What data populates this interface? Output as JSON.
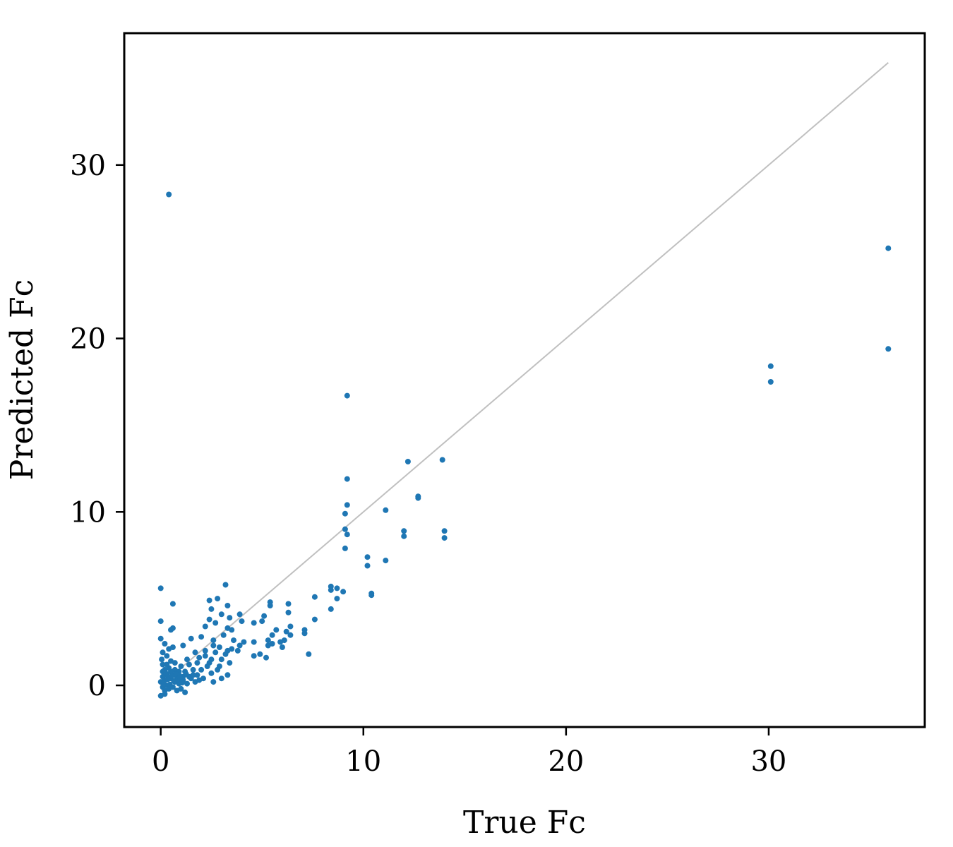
{
  "chart_data": {
    "type": "scatter",
    "title": "",
    "xlabel": "True Fc",
    "ylabel": "Predicted Fc",
    "xlim": [
      -1.8,
      37.7
    ],
    "ylim": [
      -2.4,
      37.6
    ],
    "xticks": [
      0,
      10,
      20,
      30
    ],
    "yticks": [
      0,
      10,
      20,
      30
    ],
    "xtick_labels": [
      "0",
      "10",
      "20",
      "30"
    ],
    "ytick_labels": [
      "0",
      "10",
      "20",
      "30"
    ],
    "grid": false,
    "legend": "none",
    "marker_color": "#1f77b4",
    "identity_line": {
      "from": [
        0,
        0
      ],
      "to": [
        35.9,
        35.9
      ],
      "color": "#c0c0c0"
    },
    "points": [
      [
        0.4,
        28.3
      ],
      [
        35.9,
        25.2
      ],
      [
        35.9,
        19.4
      ],
      [
        30.1,
        18.4
      ],
      [
        30.1,
        17.5
      ],
      [
        9.2,
        16.7
      ],
      [
        12.2,
        12.9
      ],
      [
        13.9,
        13.0
      ],
      [
        9.2,
        11.9
      ],
      [
        12.7,
        10.9
      ],
      [
        12.7,
        10.8
      ],
      [
        9.2,
        10.4
      ],
      [
        9.1,
        9.9
      ],
      [
        11.1,
        10.1
      ],
      [
        9.1,
        9.0
      ],
      [
        9.2,
        8.7
      ],
      [
        12.0,
        8.9
      ],
      [
        12.0,
        8.6
      ],
      [
        14.0,
        8.9
      ],
      [
        14.0,
        8.5
      ],
      [
        9.1,
        7.9
      ],
      [
        10.2,
        7.4
      ],
      [
        10.2,
        6.9
      ],
      [
        11.1,
        7.2
      ],
      [
        8.4,
        5.7
      ],
      [
        8.7,
        5.6
      ],
      [
        8.4,
        5.5
      ],
      [
        9.0,
        5.4
      ],
      [
        10.4,
        5.3
      ],
      [
        10.4,
        5.2
      ],
      [
        8.7,
        5.0
      ],
      [
        7.6,
        5.1
      ],
      [
        8.4,
        4.4
      ],
      [
        7.6,
        3.8
      ],
      [
        7.1,
        3.0
      ],
      [
        7.1,
        3.2
      ],
      [
        7.3,
        1.8
      ],
      [
        6.3,
        4.7
      ],
      [
        6.3,
        4.2
      ],
      [
        6.4,
        3.4
      ],
      [
        6.2,
        3.1
      ],
      [
        6.4,
        2.9
      ],
      [
        6.1,
        2.6
      ],
      [
        6.0,
        2.2
      ],
      [
        5.9,
        2.5
      ],
      [
        5.7,
        3.2
      ],
      [
        5.4,
        4.8
      ],
      [
        5.4,
        4.6
      ],
      [
        5.1,
        4.0
      ],
      [
        5.0,
        3.7
      ],
      [
        4.6,
        3.6
      ],
      [
        5.5,
        2.9
      ],
      [
        5.3,
        2.6
      ],
      [
        5.5,
        2.4
      ],
      [
        5.3,
        2.3
      ],
      [
        4.6,
        2.5
      ],
      [
        4.9,
        1.8
      ],
      [
        4.6,
        1.7
      ],
      [
        5.2,
        1.6
      ],
      [
        0.0,
        5.6
      ],
      [
        0.6,
        4.7
      ],
      [
        2.4,
        4.9
      ],
      [
        2.8,
        5.0
      ],
      [
        3.2,
        5.8
      ],
      [
        3.3,
        4.6
      ],
      [
        2.5,
        4.4
      ],
      [
        3.0,
        4.1
      ],
      [
        3.4,
        3.9
      ],
      [
        3.9,
        4.1
      ],
      [
        4.0,
        3.7
      ],
      [
        3.9,
        2.3
      ],
      [
        3.8,
        2.0
      ],
      [
        4.1,
        2.5
      ],
      [
        0.0,
        3.7
      ],
      [
        0.5,
        3.2
      ],
      [
        0.6,
        3.3
      ],
      [
        1.5,
        2.7
      ],
      [
        2.2,
        3.4
      ],
      [
        2.4,
        3.8
      ],
      [
        2.7,
        3.6
      ],
      [
        3.3,
        3.3
      ],
      [
        3.5,
        3.2
      ],
      [
        2.0,
        2.8
      ],
      [
        2.6,
        2.6
      ],
      [
        3.1,
        2.9
      ],
      [
        3.6,
        2.6
      ],
      [
        3.3,
        2.0
      ],
      [
        3.0,
        1.5
      ],
      [
        2.9,
        1.1
      ],
      [
        3.4,
        1.3
      ],
      [
        3.0,
        0.4
      ],
      [
        3.3,
        0.6
      ],
      [
        2.6,
        0.2
      ],
      [
        0.0,
        2.7
      ],
      [
        0.2,
        2.4
      ],
      [
        0.4,
        2.1
      ],
      [
        0.6,
        2.2
      ],
      [
        1.1,
        2.3
      ],
      [
        1.7,
        1.9
      ],
      [
        1.3,
        1.5
      ],
      [
        1.8,
        1.3
      ],
      [
        2.2,
        1.7
      ],
      [
        2.3,
        1.1
      ],
      [
        2.5,
        1.5
      ],
      [
        2.7,
        1.9
      ],
      [
        2.5,
        0.7
      ],
      [
        2.8,
        0.9
      ],
      [
        2.1,
        0.4
      ],
      [
        1.8,
        0.6
      ],
      [
        1.6,
        0.9
      ],
      [
        1.4,
        0.5
      ],
      [
        1.2,
        0.8
      ],
      [
        1.0,
        1.1
      ],
      [
        0.9,
        0.6
      ],
      [
        0.7,
        0.9
      ],
      [
        0.5,
        1.4
      ],
      [
        0.3,
        1.7
      ],
      [
        0.1,
        1.9
      ],
      [
        0.1,
        1.2
      ],
      [
        0.2,
        0.9
      ],
      [
        0.3,
        0.6
      ],
      [
        0.5,
        0.4
      ],
      [
        0.7,
        0.2
      ],
      [
        0.9,
        0.1
      ],
      [
        1.1,
        0.3
      ],
      [
        1.3,
        0.1
      ],
      [
        1.5,
        0.4
      ],
      [
        1.7,
        0.2
      ],
      [
        1.9,
        0.3
      ],
      [
        0.1,
        0.5
      ],
      [
        0.0,
        0.2
      ],
      [
        0.1,
        -0.1
      ],
      [
        0.2,
        -0.3
      ],
      [
        0.3,
        0.0
      ],
      [
        0.4,
        -0.2
      ],
      [
        0.6,
        -0.1
      ],
      [
        0.8,
        -0.3
      ],
      [
        0.0,
        -0.6
      ],
      [
        0.2,
        -0.5
      ],
      [
        1.0,
        -0.2
      ],
      [
        1.2,
        -0.4
      ],
      [
        0.5,
        0.8
      ],
      [
        0.4,
        1.0
      ],
      [
        0.6,
        0.6
      ],
      [
        0.8,
        0.4
      ],
      [
        0.2,
        0.3
      ],
      [
        0.3,
        1.2
      ],
      [
        0.1,
        0.8
      ],
      [
        0.9,
        0.8
      ],
      [
        1.4,
        1.2
      ],
      [
        1.1,
        0.5
      ],
      [
        0.7,
        1.3
      ],
      [
        1.6,
        0.6
      ],
      [
        2.0,
        0.9
      ],
      [
        2.4,
        1.3
      ],
      [
        2.9,
        2.2
      ],
      [
        3.2,
        1.8
      ],
      [
        3.5,
        2.1
      ],
      [
        2.6,
        2.3
      ],
      [
        2.2,
        2.0
      ],
      [
        1.9,
        1.6
      ],
      [
        0.05,
        1.5
      ],
      [
        0.15,
        0.1
      ],
      [
        0.25,
        0.7
      ],
      [
        0.35,
        0.35
      ],
      [
        0.45,
        0.05
      ],
      [
        0.55,
        0.55
      ],
      [
        0.65,
        0.25
      ],
      [
        0.75,
        0.65
      ],
      [
        0.85,
        0.35
      ],
      [
        0.95,
        0.45
      ],
      [
        1.05,
        0.15
      ],
      [
        1.25,
        0.65
      ]
    ]
  }
}
